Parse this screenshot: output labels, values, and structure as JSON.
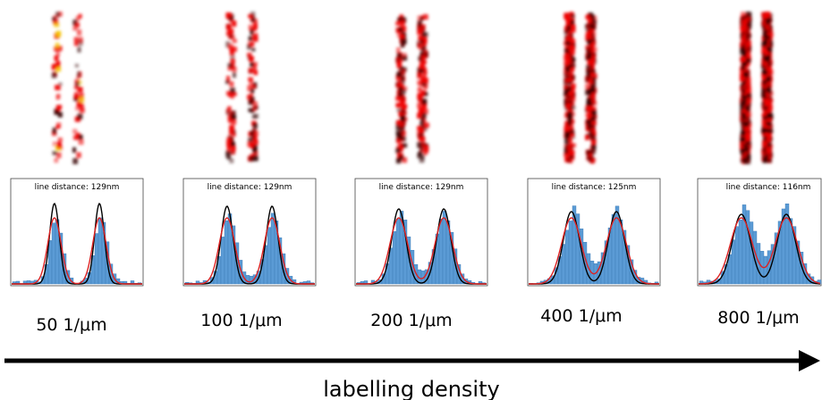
{
  "panels": [
    {
      "line_distance": "line distance: 129nm",
      "density": "50 1/μm"
    },
    {
      "line_distance": "line distance: 129nm",
      "density": "100 1/μm"
    },
    {
      "line_distance": "line distance: 129nm",
      "density": "200 1/μm"
    },
    {
      "line_distance": "line distance: 125nm",
      "density": "400 1/μm"
    },
    {
      "line_distance": "line distance: 116nm",
      "density": "800 1/μm"
    }
  ],
  "axis_label": "labelling density"
}
